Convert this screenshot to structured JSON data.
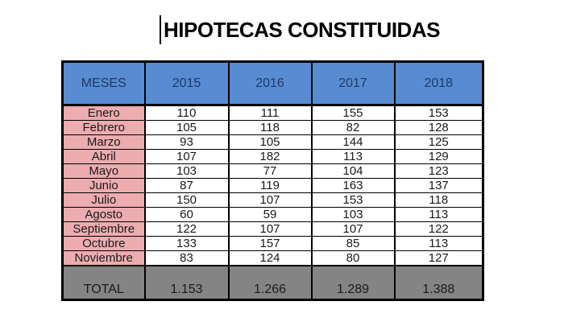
{
  "page": {
    "title": "HIPOTECAS CONSTITUIDAS"
  },
  "colors": {
    "header_bg": "#578CD2",
    "header_text": "#1F3864",
    "month_bg": "#ECACB0",
    "value_bg": "#FFFFFF",
    "total_bg": "#848484",
    "border": "#000000",
    "title_text": "#000000",
    "cell_text": "#1A1A1A"
  },
  "table": {
    "columns": [
      "MESES",
      "2015",
      "2016",
      "2017",
      "2018"
    ],
    "rows": [
      {
        "month": "Enero",
        "values": [
          "110",
          "111",
          "155",
          "153"
        ]
      },
      {
        "month": "Febrero",
        "values": [
          "105",
          "118",
          "82",
          "128"
        ]
      },
      {
        "month": "Marzo",
        "values": [
          "93",
          "105",
          "144",
          "125"
        ]
      },
      {
        "month": "Abril",
        "values": [
          "107",
          "182",
          "113",
          "129"
        ]
      },
      {
        "month": "Mayo",
        "values": [
          "103",
          "77",
          "104",
          "123"
        ]
      },
      {
        "month": "Junio",
        "values": [
          "87",
          "119",
          "163",
          "137"
        ]
      },
      {
        "month": "Julio",
        "values": [
          "150",
          "107",
          "153",
          "118"
        ]
      },
      {
        "month": "Agosto",
        "values": [
          "60",
          "59",
          "103",
          "113"
        ]
      },
      {
        "month": "Septiembre",
        "values": [
          "122",
          "107",
          "107",
          "122"
        ]
      },
      {
        "month": "Octubre",
        "values": [
          "133",
          "157",
          "85",
          "113"
        ]
      },
      {
        "month": "Noviembre",
        "values": [
          "83",
          "124",
          "80",
          "127"
        ]
      }
    ],
    "total": {
      "label": "TOTAL",
      "values": [
        "1.153",
        "1.266",
        "1.289",
        "1.388"
      ]
    }
  },
  "chart_data": {
    "type": "table",
    "title": "HIPOTECAS CONSTITUIDAS",
    "categories": [
      "Enero",
      "Febrero",
      "Marzo",
      "Abril",
      "Mayo",
      "Junio",
      "Julio",
      "Agosto",
      "Septiembre",
      "Octubre",
      "Noviembre"
    ],
    "series": [
      {
        "name": "2015",
        "values": [
          110,
          105,
          93,
          107,
          103,
          87,
          150,
          60,
          122,
          133,
          83
        ],
        "total": 1153
      },
      {
        "name": "2016",
        "values": [
          111,
          118,
          105,
          182,
          77,
          119,
          107,
          59,
          107,
          157,
          124
        ],
        "total": 1266
      },
      {
        "name": "2017",
        "values": [
          155,
          82,
          144,
          113,
          104,
          163,
          153,
          103,
          107,
          85,
          80
        ],
        "total": 1289
      },
      {
        "name": "2018",
        "values": [
          153,
          128,
          125,
          129,
          123,
          137,
          118,
          113,
          122,
          113,
          127
        ],
        "total": 1388
      }
    ]
  }
}
